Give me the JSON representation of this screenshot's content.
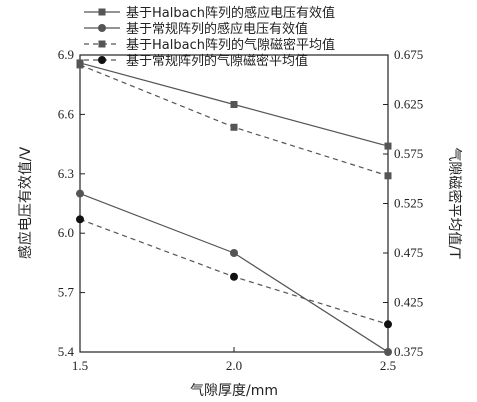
{
  "chart_data": {
    "type": "line",
    "x": [
      1.5,
      2.0,
      2.5
    ],
    "xticks": [
      "1.5",
      "2.0",
      "2.5"
    ],
    "xlabel": "气隙厚度/mm",
    "ylabel": "感应电压有效值/V",
    "y2label": "气隙磁密平均值/T",
    "ylim": [
      5.4,
      6.9
    ],
    "y2lim": [
      0.375,
      0.675
    ],
    "yticks": [
      "5.4",
      "5.7",
      "6.0",
      "6.3",
      "6.6",
      "6.9"
    ],
    "y2ticks": [
      "0.375",
      "0.425",
      "0.475",
      "0.525",
      "0.575",
      "0.625",
      "0.675"
    ],
    "grid": false,
    "legend_position": "top",
    "series": [
      {
        "name": "基于Halbach阵列的感应电压有效值",
        "axis": "left",
        "marker": "square",
        "line": "solid",
        "values": [
          6.86,
          6.65,
          6.44
        ]
      },
      {
        "name": "基于常规阵列的感应电压有效值",
        "axis": "left",
        "marker": "circle",
        "line": "solid",
        "values": [
          6.2,
          5.9,
          5.4
        ]
      },
      {
        "name": "基于Halbach阵列的气隙磁密平均值",
        "axis": "right",
        "marker": "square",
        "line": "dashed",
        "values": [
          0.665,
          0.602,
          0.553
        ]
      },
      {
        "name": "基于常规阵列的气隙磁密平均值",
        "axis": "right",
        "marker": "circle",
        "line": "dashed",
        "values": [
          0.509,
          0.451,
          0.403
        ]
      }
    ],
    "color": "#555555"
  }
}
